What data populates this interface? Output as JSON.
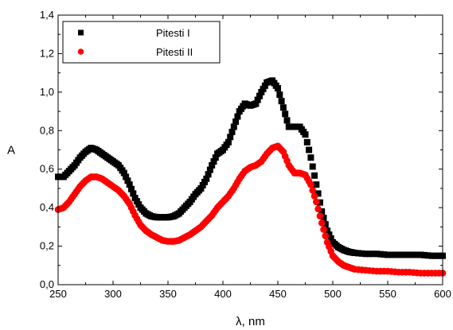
{
  "chart_data": {
    "type": "scatter",
    "xlabel": "λ, nm",
    "ylabel": "A",
    "xlim": [
      250,
      600
    ],
    "ylim": [
      0.0,
      1.4
    ],
    "x_ticks": [
      "250",
      "300",
      "350",
      "400",
      "450",
      "500",
      "550",
      "600"
    ],
    "y_ticks": [
      "0,0",
      "0,2",
      "0,4",
      "0,6",
      "0,8",
      "1,0",
      "1,2",
      "1,4"
    ],
    "grid": false,
    "legend_position": "top-left",
    "series": [
      {
        "name": "Pitesti I",
        "color": "#000000",
        "marker": "square",
        "x": [
          250,
          255,
          260,
          265,
          270,
          275,
          280,
          285,
          290,
          295,
          300,
          305,
          310,
          315,
          320,
          325,
          330,
          335,
          340,
          345,
          350,
          355,
          360,
          365,
          370,
          375,
          380,
          385,
          390,
          395,
          400,
          405,
          410,
          415,
          420,
          425,
          430,
          435,
          440,
          445,
          450,
          455,
          460,
          465,
          470,
          475,
          480,
          485,
          490,
          495,
          500,
          505,
          510,
          515,
          520,
          530,
          540,
          550,
          560,
          570,
          580,
          590,
          600
        ],
        "y": [
          0.56,
          0.56,
          0.59,
          0.62,
          0.66,
          0.69,
          0.71,
          0.7,
          0.68,
          0.66,
          0.64,
          0.62,
          0.58,
          0.52,
          0.45,
          0.4,
          0.37,
          0.355,
          0.35,
          0.35,
          0.35,
          0.355,
          0.37,
          0.4,
          0.43,
          0.47,
          0.5,
          0.55,
          0.62,
          0.68,
          0.7,
          0.74,
          0.82,
          0.9,
          0.94,
          0.93,
          0.94,
          1.0,
          1.05,
          1.06,
          1.02,
          0.92,
          0.82,
          0.82,
          0.82,
          0.78,
          0.66,
          0.52,
          0.38,
          0.28,
          0.22,
          0.195,
          0.18,
          0.17,
          0.165,
          0.16,
          0.16,
          0.155,
          0.155,
          0.155,
          0.155,
          0.15,
          0.15
        ]
      },
      {
        "name": "Pitesti II",
        "color": "#ff0000",
        "marker": "circle",
        "x": [
          250,
          255,
          260,
          265,
          270,
          275,
          280,
          285,
          290,
          295,
          300,
          305,
          310,
          315,
          320,
          325,
          330,
          335,
          340,
          345,
          350,
          355,
          360,
          365,
          370,
          375,
          380,
          385,
          390,
          395,
          400,
          405,
          410,
          415,
          420,
          425,
          430,
          435,
          440,
          445,
          450,
          455,
          460,
          465,
          470,
          475,
          480,
          485,
          490,
          495,
          500,
          505,
          510,
          515,
          520,
          530,
          540,
          550,
          560,
          570,
          580,
          590,
          600
        ],
        "y": [
          0.39,
          0.4,
          0.43,
          0.47,
          0.51,
          0.54,
          0.56,
          0.56,
          0.55,
          0.53,
          0.51,
          0.49,
          0.46,
          0.42,
          0.36,
          0.31,
          0.28,
          0.26,
          0.245,
          0.23,
          0.225,
          0.225,
          0.23,
          0.245,
          0.26,
          0.28,
          0.3,
          0.33,
          0.36,
          0.4,
          0.43,
          0.46,
          0.5,
          0.55,
          0.59,
          0.61,
          0.62,
          0.64,
          0.68,
          0.71,
          0.72,
          0.69,
          0.62,
          0.58,
          0.58,
          0.57,
          0.52,
          0.43,
          0.32,
          0.22,
          0.15,
          0.12,
          0.1,
          0.09,
          0.08,
          0.075,
          0.07,
          0.07,
          0.065,
          0.065,
          0.06,
          0.06,
          0.06
        ]
      }
    ]
  }
}
